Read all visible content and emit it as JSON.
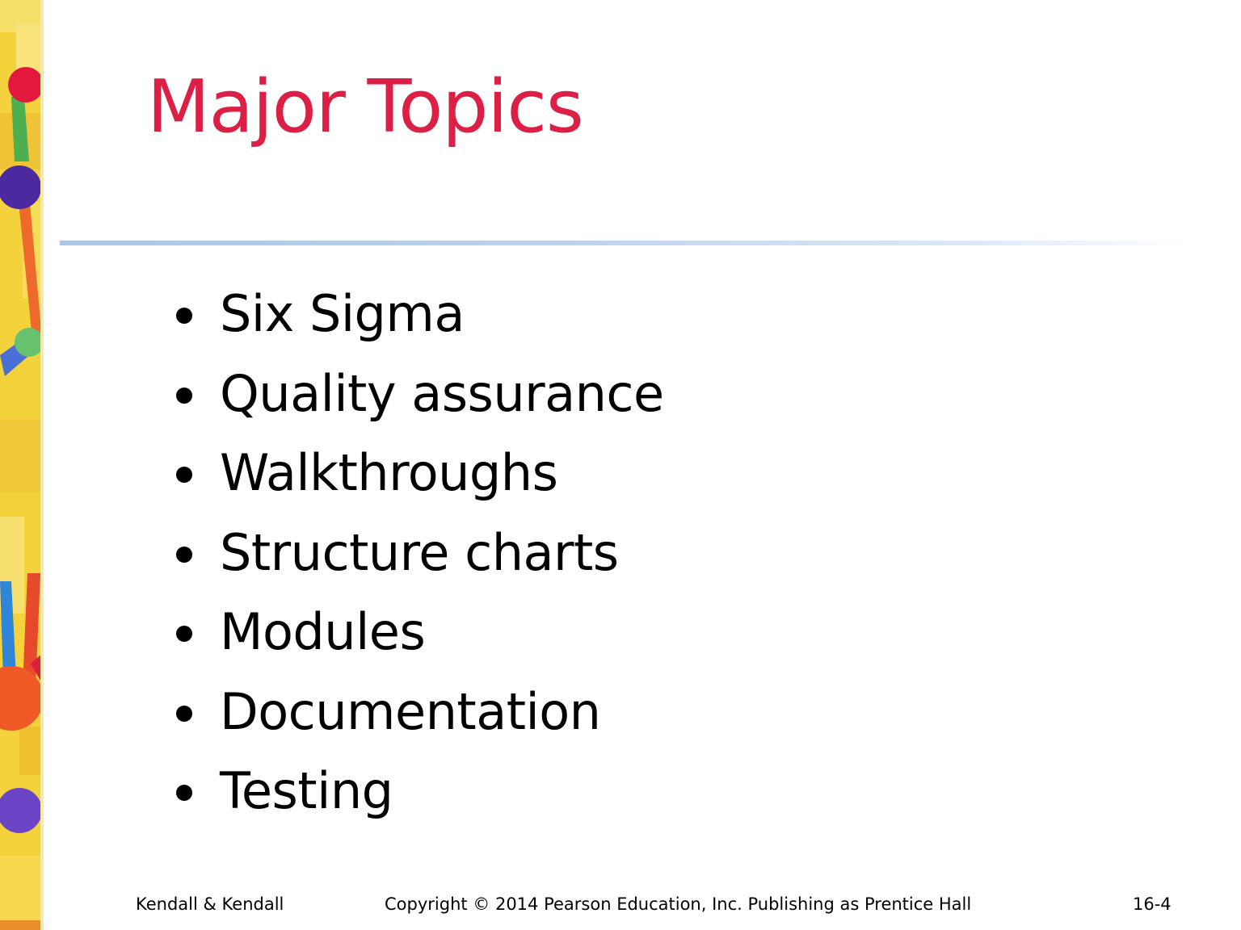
{
  "slide": {
    "title": "Major Topics",
    "topics": [
      "Six Sigma",
      "Quality assurance",
      "Walkthroughs",
      "Structure charts",
      "Modules",
      "Documentation",
      "Testing"
    ],
    "footer": {
      "left": "Kendall & Kendall",
      "center": "Copyright © 2014 Pearson Education, Inc. Publishing as Prentice Hall",
      "right": "16-4"
    }
  },
  "colors": {
    "title": "#dc1f44",
    "divider": "#a9c6e8",
    "text": "#000000"
  }
}
